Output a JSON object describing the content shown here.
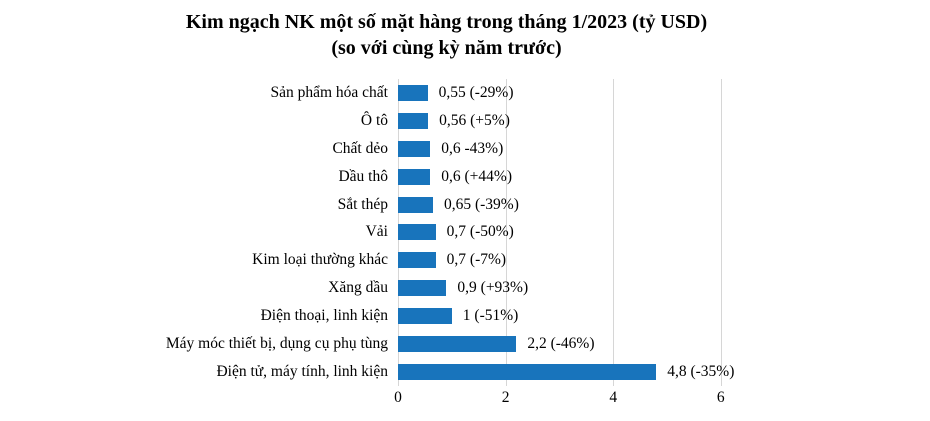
{
  "title": "Kim ngạch NK một số mặt hàng trong tháng 1/2023 (tỷ USD)",
  "subtitle": "(so với cùng kỳ năm trước)",
  "colors": {
    "bar": "#1874bc",
    "gridline": "#d6d6d6",
    "text": "#000000"
  },
  "chart_data": {
    "type": "bar",
    "orientation": "horizontal",
    "title": "Kim ngạch NK một số mặt hàng trong tháng 1/2023 (tỷ USD)",
    "subtitle": "(so với cùng kỳ năm trước)",
    "categories": [
      "Sản phẩm hóa chất",
      "Ô tô",
      "Chất dẻo",
      "Dầu thô",
      "Sắt thép",
      "Vải",
      "Kim loại thường khác",
      "Xăng dầu",
      "Điện thoại, linh kiện",
      "Máy móc thiết bị, dụng cụ phụ tùng",
      "Điện tử, máy tính, linh kiện"
    ],
    "values": [
      0.55,
      0.56,
      0.6,
      0.6,
      0.65,
      0.7,
      0.7,
      0.9,
      1,
      2.2,
      4.8
    ],
    "value_labels": [
      "0,55 (-29%)",
      "0,56 (+5%)",
      "0,6 -43%)",
      "0,6 (+44%)",
      "0,65 (-39%)",
      "0,7 (-50%)",
      "0,7 (-7%)",
      "0,9 (+93%)",
      "1 (-51%)",
      "2,2 (-46%)",
      "4,8 (-35%)"
    ],
    "pct_change": [
      -29,
      5,
      -43,
      44,
      -39,
      -50,
      -7,
      93,
      -51,
      -46,
      -35
    ],
    "xlabel": "",
    "ylabel": "",
    "xlim": [
      0,
      7.1
    ],
    "x_ticks": [
      0,
      2,
      4,
      6
    ],
    "x_tick_labels": [
      "0",
      "2",
      "4",
      "6"
    ],
    "grid": "vertical-major",
    "legend": "none",
    "data_labels": "outside-end"
  }
}
